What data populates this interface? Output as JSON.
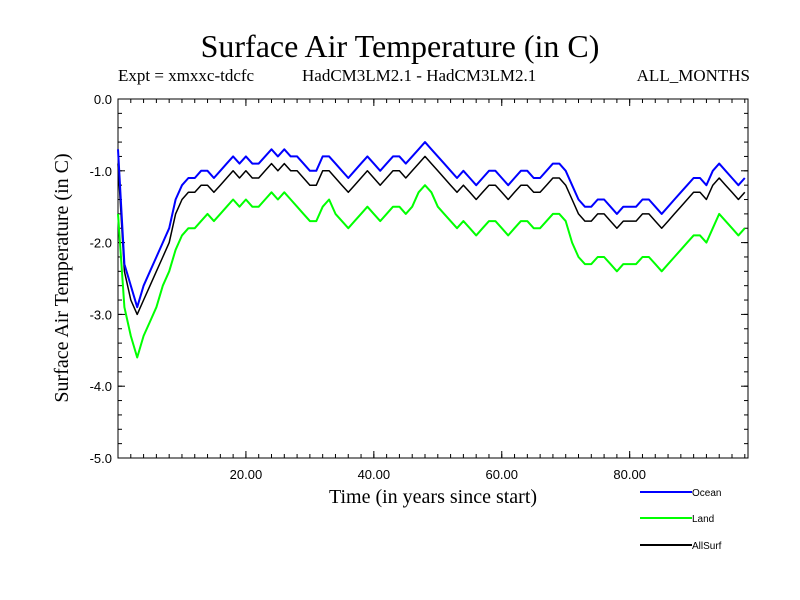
{
  "header": {
    "title": "Surface Air Temperature (in C)",
    "expt": "Expt = xmxxc-tdcfc",
    "models": "HadCM3LM2.1 - HadCM3LM2.1",
    "months": "ALL_MONTHS"
  },
  "chart_data": {
    "type": "line",
    "xlabel": "Time (in years since start)",
    "ylabel": "Surface Air Temperature (in C)",
    "xlim": [
      0,
      98.5
    ],
    "ylim": [
      -5.0,
      0.0
    ],
    "xticks": [
      "20.00",
      "40.00",
      "60.00",
      "80.00"
    ],
    "xtick_values": [
      20,
      40,
      60,
      80
    ],
    "yticks": [
      "0.0",
      "-1.0",
      "-2.0",
      "-3.0",
      "-4.0",
      "-5.0"
    ],
    "ytick_values": [
      0,
      -1,
      -2,
      -3,
      -4,
      -5
    ],
    "legend": "bottom-right",
    "series": [
      {
        "name": "Ocean",
        "color": "#0000ff",
        "x": [
          0,
          1,
          2,
          3,
          4,
          5,
          6,
          7,
          8,
          9,
          10,
          11,
          12,
          13,
          14,
          15,
          16,
          17,
          18,
          19,
          20,
          21,
          22,
          23,
          24,
          25,
          26,
          27,
          28,
          29,
          30,
          31,
          32,
          33,
          34,
          35,
          36,
          37,
          38,
          39,
          40,
          41,
          42,
          43,
          44,
          45,
          46,
          47,
          48,
          49,
          50,
          51,
          52,
          53,
          54,
          55,
          56,
          57,
          58,
          59,
          60,
          61,
          62,
          63,
          64,
          65,
          66,
          67,
          68,
          69,
          70,
          71,
          72,
          73,
          74,
          75,
          76,
          77,
          78,
          79,
          80,
          81,
          82,
          83,
          84,
          85,
          86,
          87,
          88,
          89,
          90,
          91,
          92,
          93,
          94,
          95,
          96,
          97,
          98
        ],
        "y": [
          -0.7,
          -2.3,
          -2.6,
          -2.9,
          -2.6,
          -2.4,
          -2.2,
          -2.0,
          -1.8,
          -1.4,
          -1.2,
          -1.1,
          -1.1,
          -1.0,
          -1.0,
          -1.1,
          -1.0,
          -0.9,
          -0.8,
          -0.9,
          -0.8,
          -0.9,
          -0.9,
          -0.8,
          -0.7,
          -0.8,
          -0.7,
          -0.8,
          -0.8,
          -0.9,
          -1.0,
          -1.0,
          -0.8,
          -0.8,
          -0.9,
          -1.0,
          -1.1,
          -1.0,
          -0.9,
          -0.8,
          -0.9,
          -1.0,
          -0.9,
          -0.8,
          -0.8,
          -0.9,
          -0.8,
          -0.7,
          -0.6,
          -0.7,
          -0.8,
          -0.9,
          -1.0,
          -1.1,
          -1.0,
          -1.1,
          -1.2,
          -1.1,
          -1.0,
          -1.0,
          -1.1,
          -1.2,
          -1.1,
          -1.0,
          -1.0,
          -1.1,
          -1.1,
          -1.0,
          -0.9,
          -0.9,
          -1.0,
          -1.2,
          -1.4,
          -1.5,
          -1.5,
          -1.4,
          -1.4,
          -1.5,
          -1.6,
          -1.5,
          -1.5,
          -1.5,
          -1.4,
          -1.4,
          -1.5,
          -1.6,
          -1.5,
          -1.4,
          -1.3,
          -1.2,
          -1.1,
          -1.1,
          -1.2,
          -1.0,
          -0.9,
          -1.0,
          -1.1,
          -1.2,
          -1.1
        ]
      },
      {
        "name": "Land",
        "color": "#00ff00",
        "x": [
          0,
          1,
          2,
          3,
          4,
          5,
          6,
          7,
          8,
          9,
          10,
          11,
          12,
          13,
          14,
          15,
          16,
          17,
          18,
          19,
          20,
          21,
          22,
          23,
          24,
          25,
          26,
          27,
          28,
          29,
          30,
          31,
          32,
          33,
          34,
          35,
          36,
          37,
          38,
          39,
          40,
          41,
          42,
          43,
          44,
          45,
          46,
          47,
          48,
          49,
          50,
          51,
          52,
          53,
          54,
          55,
          56,
          57,
          58,
          59,
          60,
          61,
          62,
          63,
          64,
          65,
          66,
          67,
          68,
          69,
          70,
          71,
          72,
          73,
          74,
          75,
          76,
          77,
          78,
          79,
          80,
          81,
          82,
          83,
          84,
          85,
          86,
          87,
          88,
          89,
          90,
          91,
          92,
          93,
          94,
          95,
          96,
          97,
          98
        ],
        "y": [
          -1.6,
          -2.9,
          -3.3,
          -3.6,
          -3.3,
          -3.1,
          -2.9,
          -2.6,
          -2.4,
          -2.1,
          -1.9,
          -1.8,
          -1.8,
          -1.7,
          -1.6,
          -1.7,
          -1.6,
          -1.5,
          -1.4,
          -1.5,
          -1.4,
          -1.5,
          -1.5,
          -1.4,
          -1.3,
          -1.4,
          -1.3,
          -1.4,
          -1.5,
          -1.6,
          -1.7,
          -1.7,
          -1.5,
          -1.4,
          -1.6,
          -1.7,
          -1.8,
          -1.7,
          -1.6,
          -1.5,
          -1.6,
          -1.7,
          -1.6,
          -1.5,
          -1.5,
          -1.6,
          -1.5,
          -1.3,
          -1.2,
          -1.3,
          -1.5,
          -1.6,
          -1.7,
          -1.8,
          -1.7,
          -1.8,
          -1.9,
          -1.8,
          -1.7,
          -1.7,
          -1.8,
          -1.9,
          -1.8,
          -1.7,
          -1.7,
          -1.8,
          -1.8,
          -1.7,
          -1.6,
          -1.6,
          -1.7,
          -2.0,
          -2.2,
          -2.3,
          -2.3,
          -2.2,
          -2.2,
          -2.3,
          -2.4,
          -2.3,
          -2.3,
          -2.3,
          -2.2,
          -2.2,
          -2.3,
          -2.4,
          -2.3,
          -2.2,
          -2.1,
          -2.0,
          -1.9,
          -1.9,
          -2.0,
          -1.8,
          -1.6,
          -1.7,
          -1.8,
          -1.9,
          -1.8
        ]
      },
      {
        "name": "AllSurf",
        "color": "#000000",
        "x": [
          0,
          1,
          2,
          3,
          4,
          5,
          6,
          7,
          8,
          9,
          10,
          11,
          12,
          13,
          14,
          15,
          16,
          17,
          18,
          19,
          20,
          21,
          22,
          23,
          24,
          25,
          26,
          27,
          28,
          29,
          30,
          31,
          32,
          33,
          34,
          35,
          36,
          37,
          38,
          39,
          40,
          41,
          42,
          43,
          44,
          45,
          46,
          47,
          48,
          49,
          50,
          51,
          52,
          53,
          54,
          55,
          56,
          57,
          58,
          59,
          60,
          61,
          62,
          63,
          64,
          65,
          66,
          67,
          68,
          69,
          70,
          71,
          72,
          73,
          74,
          75,
          76,
          77,
          78,
          79,
          80,
          81,
          82,
          83,
          84,
          85,
          86,
          87,
          88,
          89,
          90,
          91,
          92,
          93,
          94,
          95,
          96,
          97,
          98
        ],
        "y": [
          -0.9,
          -2.4,
          -2.8,
          -3.0,
          -2.8,
          -2.6,
          -2.4,
          -2.2,
          -2.0,
          -1.6,
          -1.4,
          -1.3,
          -1.3,
          -1.2,
          -1.2,
          -1.3,
          -1.2,
          -1.1,
          -1.0,
          -1.1,
          -1.0,
          -1.1,
          -1.1,
          -1.0,
          -0.9,
          -1.0,
          -0.9,
          -1.0,
          -1.0,
          -1.1,
          -1.2,
          -1.2,
          -1.0,
          -1.0,
          -1.1,
          -1.2,
          -1.3,
          -1.2,
          -1.1,
          -1.0,
          -1.1,
          -1.2,
          -1.1,
          -1.0,
          -1.0,
          -1.1,
          -1.0,
          -0.9,
          -0.8,
          -0.9,
          -1.0,
          -1.1,
          -1.2,
          -1.3,
          -1.2,
          -1.3,
          -1.4,
          -1.3,
          -1.2,
          -1.2,
          -1.3,
          -1.4,
          -1.3,
          -1.2,
          -1.2,
          -1.3,
          -1.3,
          -1.2,
          -1.1,
          -1.1,
          -1.2,
          -1.4,
          -1.6,
          -1.7,
          -1.7,
          -1.6,
          -1.6,
          -1.7,
          -1.8,
          -1.7,
          -1.7,
          -1.7,
          -1.6,
          -1.6,
          -1.7,
          -1.8,
          -1.7,
          -1.6,
          -1.5,
          -1.4,
          -1.3,
          -1.3,
          -1.4,
          -1.2,
          -1.1,
          -1.2,
          -1.3,
          -1.4,
          -1.3
        ]
      }
    ]
  }
}
